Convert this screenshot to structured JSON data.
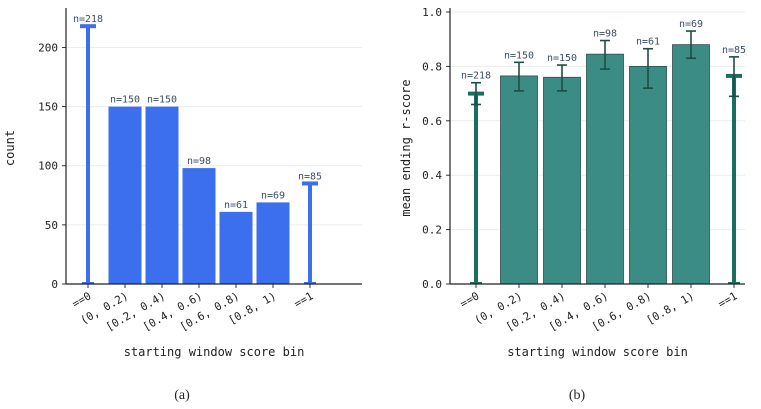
{
  "chart_data": [
    {
      "panel_label": "(a)",
      "type": "bar",
      "categories": [
        "==0",
        "(0, 0.2)",
        "[0.2, 0.4)",
        "[0.4, 0.6)",
        "[0.6, 0.8)",
        "[0.8, 1)",
        "==1"
      ],
      "values": [
        218,
        150,
        150,
        98,
        61,
        69,
        85
      ],
      "data_labels": [
        "n=218",
        "n=150",
        "n=150",
        "n=98",
        "n=61",
        "n=69",
        "n=85"
      ],
      "title": "",
      "xlabel": "starting window score bin",
      "ylabel": "count",
      "ylim": [
        0,
        230
      ],
      "yticks": [
        0,
        50,
        100,
        150,
        200
      ],
      "ytick_labels": [
        "0",
        "50",
        "100",
        "150",
        "200"
      ],
      "grid": "horizontal",
      "color": "#3b6fed",
      "thin_categories": [
        "==0",
        "==1"
      ]
    },
    {
      "panel_label": "(b)",
      "type": "bar",
      "categories": [
        "==0",
        "(0, 0.2)",
        "[0.2, 0.4)",
        "[0.4, 0.6)",
        "[0.6, 0.8)",
        "[0.8, 1)",
        "==1"
      ],
      "values": [
        0.7,
        0.765,
        0.76,
        0.845,
        0.8,
        0.88,
        0.765
      ],
      "error_low": [
        0.66,
        0.71,
        0.71,
        0.79,
        0.72,
        0.83,
        0.69
      ],
      "error_high": [
        0.74,
        0.815,
        0.805,
        0.895,
        0.865,
        0.93,
        0.835
      ],
      "data_labels": [
        "n=218",
        "n=150",
        "n=150",
        "n=98",
        "n=61",
        "n=69",
        "n=85"
      ],
      "title": "",
      "xlabel": "starting window score bin",
      "ylabel": "mean ending r-score",
      "ylim": [
        0,
        1.0
      ],
      "yticks": [
        0.0,
        0.2,
        0.4,
        0.6,
        0.8,
        1.0
      ],
      "ytick_labels": [
        "0.0",
        "0.2",
        "0.4",
        "0.6",
        "0.8",
        "1.0"
      ],
      "grid": "horizontal",
      "color": "#3a8c84",
      "thin_color": "#1a6e5e",
      "thin_categories": [
        "==0",
        "==1"
      ]
    }
  ]
}
